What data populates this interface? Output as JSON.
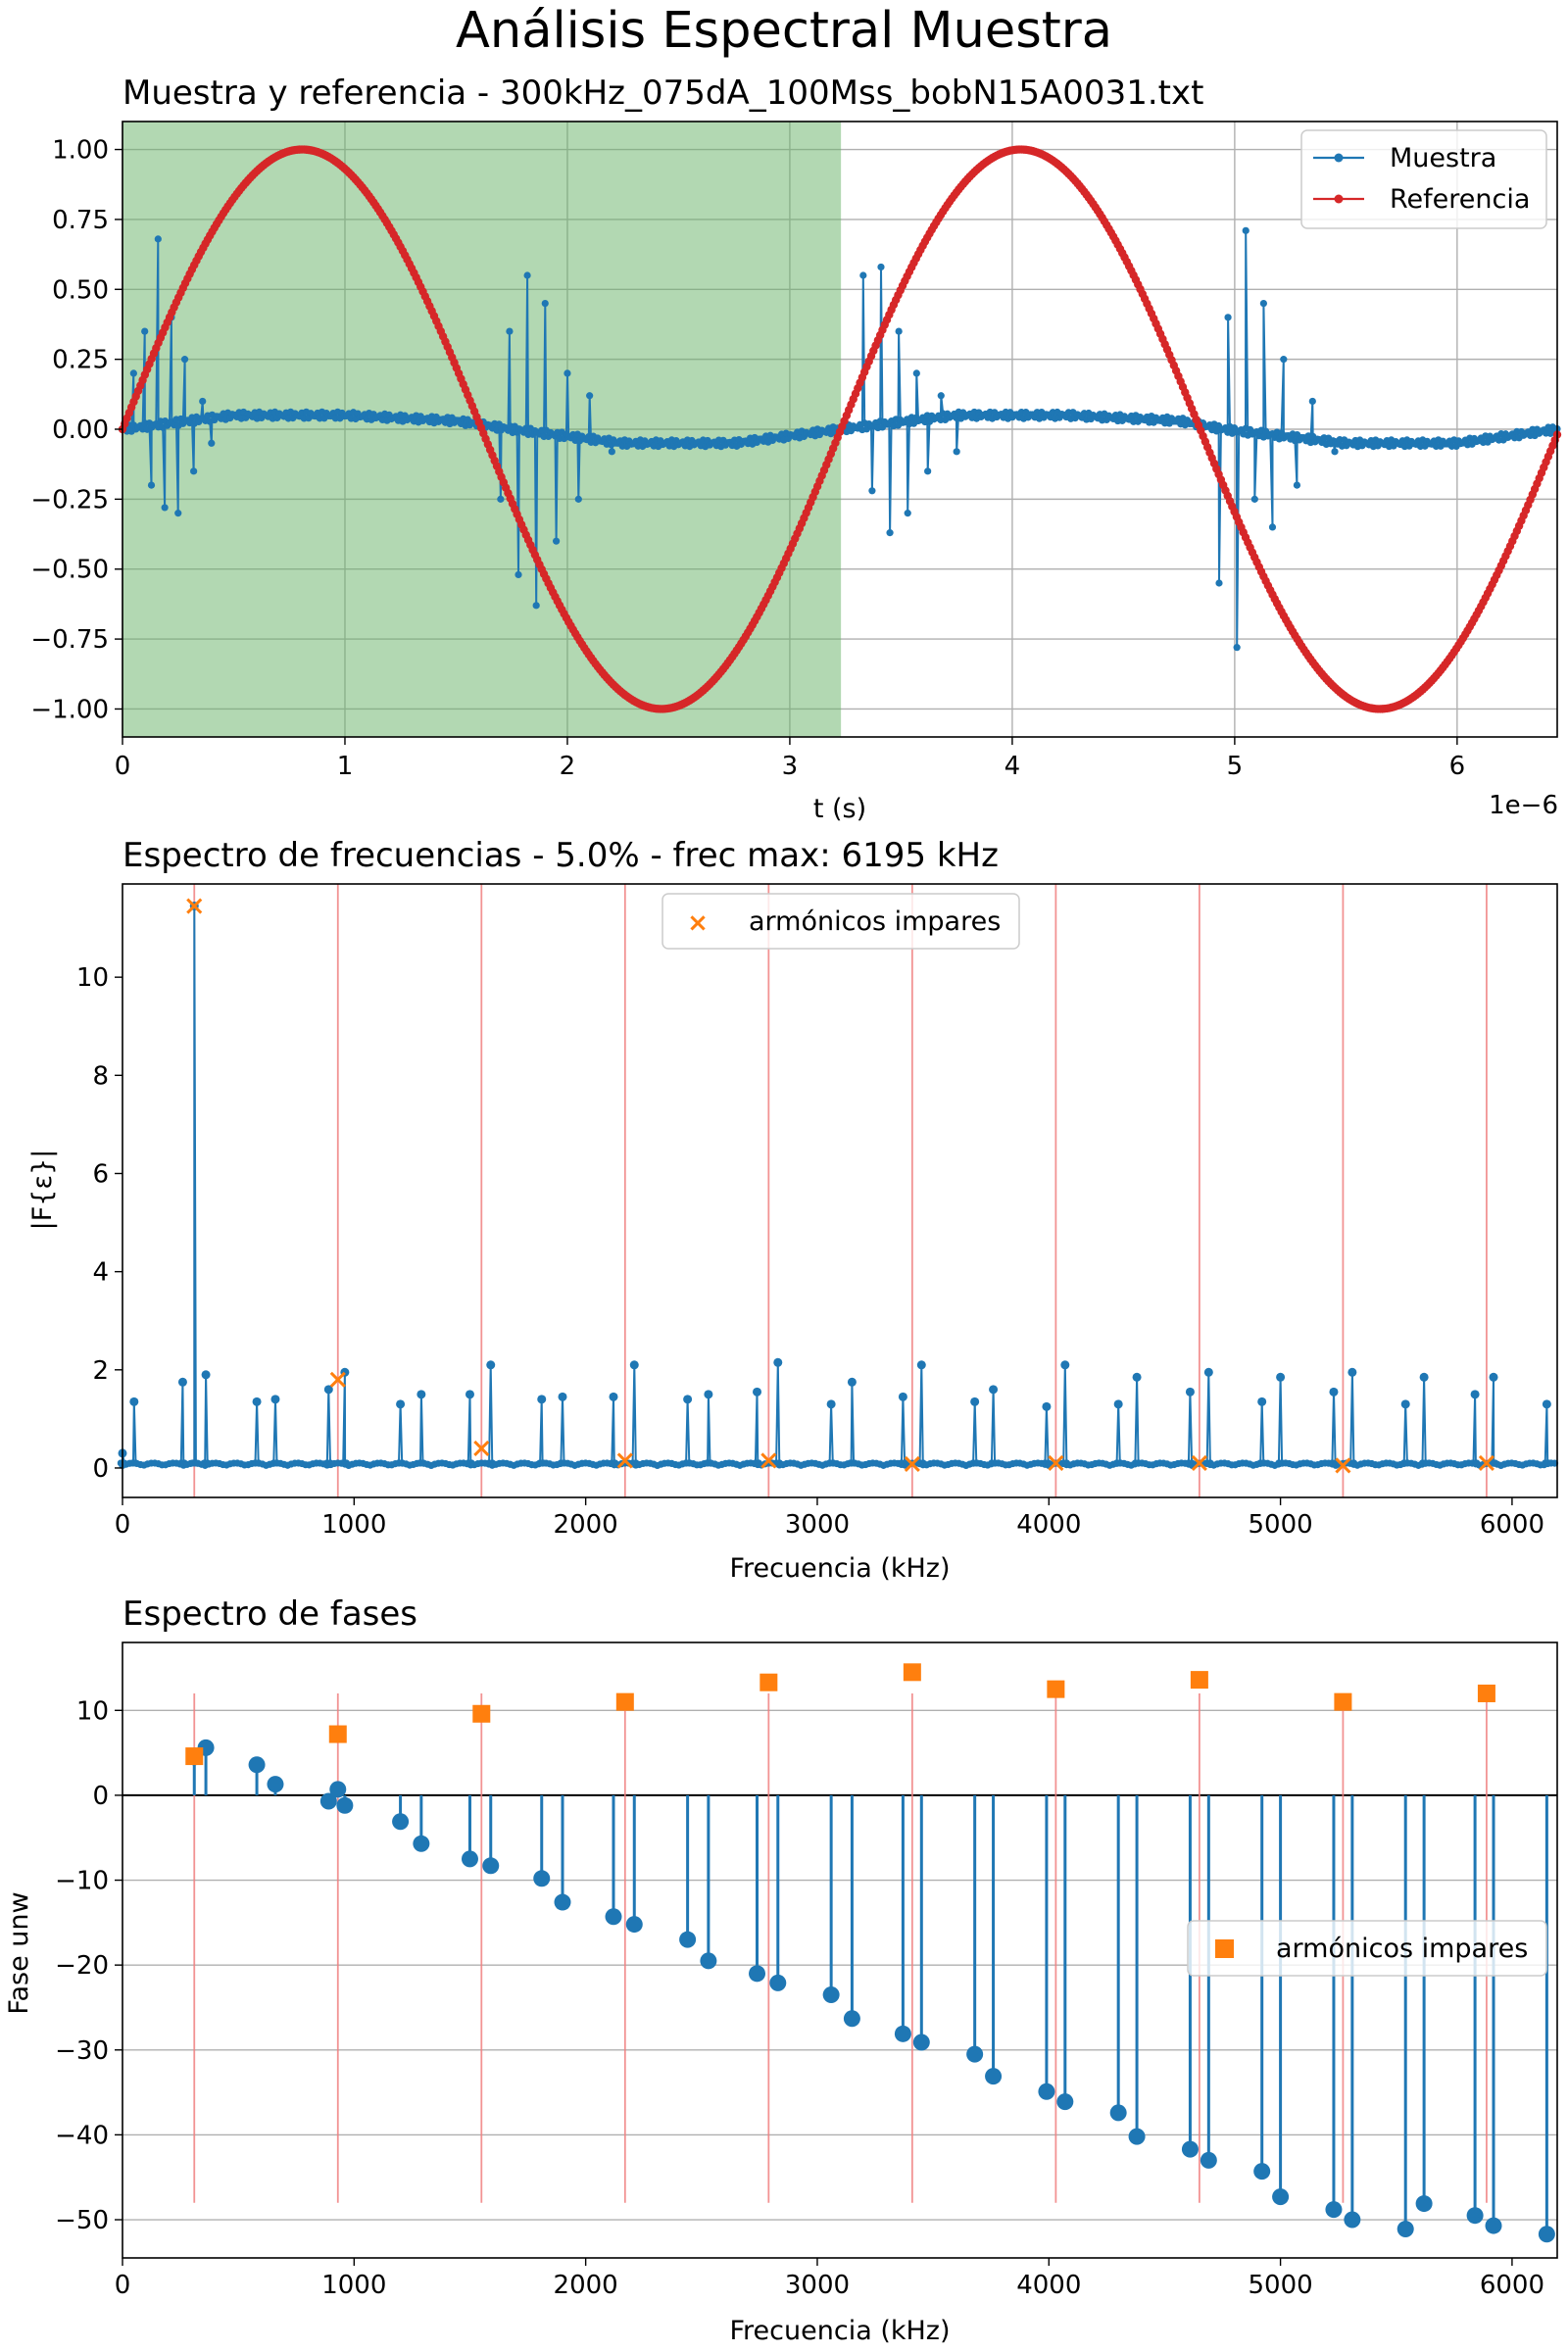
{
  "suptitle": "Análisis Espectral Muestra",
  "chart_data": [
    {
      "type": "line",
      "title": "Muestra y referencia - 300kHz_075dA_100Mss_bobN15A0031.txt",
      "xlabel": "t (s)",
      "ylabel": "",
      "x_offset_text": "1e−6",
      "xlim": [
        0,
        6.45
      ],
      "ylim": [
        -1.1,
        1.1
      ],
      "xticks": [
        "0",
        "1",
        "2",
        "3",
        "4",
        "5",
        "6"
      ],
      "yticks": [
        "−1.00",
        "−0.75",
        "−0.50",
        "−0.25",
        "0.00",
        "0.25",
        "0.50",
        "0.75",
        "1.00"
      ],
      "grid": true,
      "legend_position": "top-right",
      "shaded_span": [
        0,
        3.23
      ],
      "series": [
        {
          "name": "Muestra",
          "color": "#1f77b4",
          "description_values": {
            "baseline_x": [
              0,
              0.5,
              1.0,
              1.5,
              1.75,
              2.25,
              2.75,
              3.23,
              3.75,
              4.25,
              4.75,
              4.95,
              5.5,
              6.0,
              6.45
            ],
            "baseline_y": [
              0.0,
              0.05,
              0.05,
              0.03,
              0.0,
              -0.05,
              -0.05,
              0.0,
              0.05,
              0.05,
              0.03,
              0.0,
              -0.05,
              -0.05,
              0.0
            ],
            "bursts": [
              {
                "x": [
                  0.05,
                  0.1,
                  0.13,
                  0.16,
                  0.19,
                  0.22,
                  0.25,
                  0.28,
                  0.32,
                  0.36,
                  0.4
                ],
                "y": [
                  0.2,
                  0.35,
                  -0.2,
                  0.68,
                  -0.28,
                  0.4,
                  -0.3,
                  0.25,
                  -0.15,
                  0.1,
                  -0.05
                ]
              },
              {
                "x": [
                  1.7,
                  1.74,
                  1.78,
                  1.82,
                  1.86,
                  1.9,
                  1.95,
                  2.0,
                  2.05,
                  2.1,
                  2.2
                ],
                "y": [
                  -0.25,
                  0.35,
                  -0.52,
                  0.55,
                  -0.63,
                  0.45,
                  -0.4,
                  0.2,
                  -0.25,
                  0.12,
                  -0.08
                ]
              },
              {
                "x": [
                  3.33,
                  3.37,
                  3.41,
                  3.45,
                  3.49,
                  3.53,
                  3.57,
                  3.62,
                  3.68,
                  3.75,
                  3.85
                ],
                "y": [
                  0.55,
                  -0.22,
                  0.58,
                  -0.37,
                  0.35,
                  -0.3,
                  0.2,
                  -0.15,
                  0.12,
                  -0.08,
                  0.05
                ]
              },
              {
                "x": [
                  4.93,
                  4.97,
                  5.01,
                  5.05,
                  5.09,
                  5.13,
                  5.17,
                  5.22,
                  5.28,
                  5.35,
                  5.45
                ],
                "y": [
                  -0.55,
                  0.4,
                  -0.78,
                  0.71,
                  -0.25,
                  0.45,
                  -0.35,
                  0.25,
                  -0.2,
                  0.1,
                  -0.08
                ]
              }
            ]
          }
        },
        {
          "name": "Referencia",
          "color": "#d62728",
          "description_values": {
            "amplitude": 1.0,
            "period": 3.23,
            "phase_zero_x": 0
          }
        }
      ]
    },
    {
      "type": "line",
      "title": "Espectro de frecuencias - 5.0% - frec max: 6195 kHz",
      "xlabel": "Frecuencia (kHz)",
      "ylabel": "|F{ε}|",
      "xlim": [
        0,
        6195
      ],
      "ylim": [
        -0.6,
        11.9
      ],
      "xticks": [
        "0",
        "1000",
        "2000",
        "3000",
        "4000",
        "5000",
        "6000"
      ],
      "yticks": [
        "0",
        "2",
        "4",
        "6",
        "8",
        "10"
      ],
      "legend_position": "top-center",
      "legend": [
        "armónicos impares"
      ],
      "vlines_x": [
        310,
        930,
        1550,
        2170,
        2790,
        3410,
        4030,
        4650,
        5270,
        5890
      ],
      "peaks": {
        "x": [
          0,
          50,
          260,
          310,
          360,
          580,
          660,
          890,
          960,
          1200,
          1290,
          1500,
          1590,
          1810,
          1900,
          2120,
          2210,
          2440,
          2530,
          2740,
          2830,
          3060,
          3150,
          3370,
          3450,
          3680,
          3760,
          3990,
          4070,
          4300,
          4380,
          4610,
          4690,
          4920,
          5000,
          5230,
          5310,
          5540,
          5620,
          5840,
          5920,
          6150
        ],
        "y": [
          0.3,
          1.35,
          1.75,
          11.45,
          1.9,
          1.35,
          1.4,
          1.6,
          1.95,
          1.3,
          1.5,
          1.5,
          2.1,
          1.4,
          1.45,
          1.45,
          2.1,
          1.4,
          1.5,
          1.55,
          2.15,
          1.3,
          1.75,
          1.45,
          2.1,
          1.35,
          1.6,
          1.25,
          2.1,
          1.3,
          1.85,
          1.55,
          1.95,
          1.35,
          1.85,
          1.55,
          1.95,
          1.3,
          1.85,
          1.5,
          1.85,
          1.3
        ]
      },
      "odd_harmonics": {
        "name": "armónicos impares",
        "color": "#ff7f0e",
        "x": [
          310,
          930,
          1550,
          2170,
          2790,
          3410,
          4030,
          4650,
          5270,
          5890
        ],
        "y": [
          11.45,
          1.8,
          0.4,
          0.15,
          0.15,
          0.08,
          0.1,
          0.1,
          0.05,
          0.1
        ]
      }
    },
    {
      "type": "scatter",
      "title": "Espectro de fases",
      "xlabel": "Frecuencia (kHz)",
      "ylabel": "Fase unw",
      "xlim": [
        0,
        6195
      ],
      "ylim": [
        -54.5,
        18
      ],
      "xticks": [
        "0",
        "1000",
        "2000",
        "3000",
        "4000",
        "5000",
        "6000"
      ],
      "yticks": [
        "−50",
        "−40",
        "−30",
        "−20",
        "−10",
        "0",
        "10"
      ],
      "legend_position": "center-right",
      "legend": [
        "armónicos impares"
      ],
      "vlines_x": [
        310,
        930,
        1550,
        2170,
        2790,
        3410,
        4030,
        4650,
        5270,
        5890
      ],
      "vlines_range": [
        -48,
        12
      ],
      "stems": {
        "x": [
          310,
          360,
          580,
          660,
          890,
          930,
          960,
          1200,
          1290,
          1500,
          1590,
          1810,
          1900,
          2120,
          2210,
          2440,
          2530,
          2740,
          2830,
          3060,
          3150,
          3370,
          3450,
          3680,
          3760,
          3990,
          4070,
          4300,
          4380,
          4610,
          4690,
          4920,
          5000,
          5230,
          5310,
          5540,
          5620,
          5840,
          5920,
          6150
        ],
        "y": [
          4.5,
          5.6,
          3.6,
          1.3,
          -0.7,
          0.7,
          -1.2,
          -3.1,
          -5.7,
          -7.5,
          -8.3,
          -9.8,
          -12.6,
          -14.3,
          -15.2,
          -17,
          -19.5,
          -21,
          -22.1,
          -23.5,
          -26.3,
          -28.1,
          -29.1,
          -30.5,
          -33.1,
          -34.9,
          -36.1,
          -37.4,
          -40.2,
          -41.7,
          -43,
          -44.3,
          -47.3,
          -48.8,
          -50,
          -51.1,
          -48.1,
          -49.5,
          -50.7,
          -51.7
        ]
      },
      "odd_harmonics": {
        "name": "armónicos impares",
        "color": "#ff7f0e",
        "x": [
          310,
          930,
          1550,
          2170,
          2790,
          3410,
          4030,
          4650,
          5270,
          5890
        ],
        "y": [
          4.6,
          7.2,
          9.6,
          11,
          13.3,
          14.5,
          12.5,
          13.6,
          11,
          12
        ]
      }
    }
  ]
}
